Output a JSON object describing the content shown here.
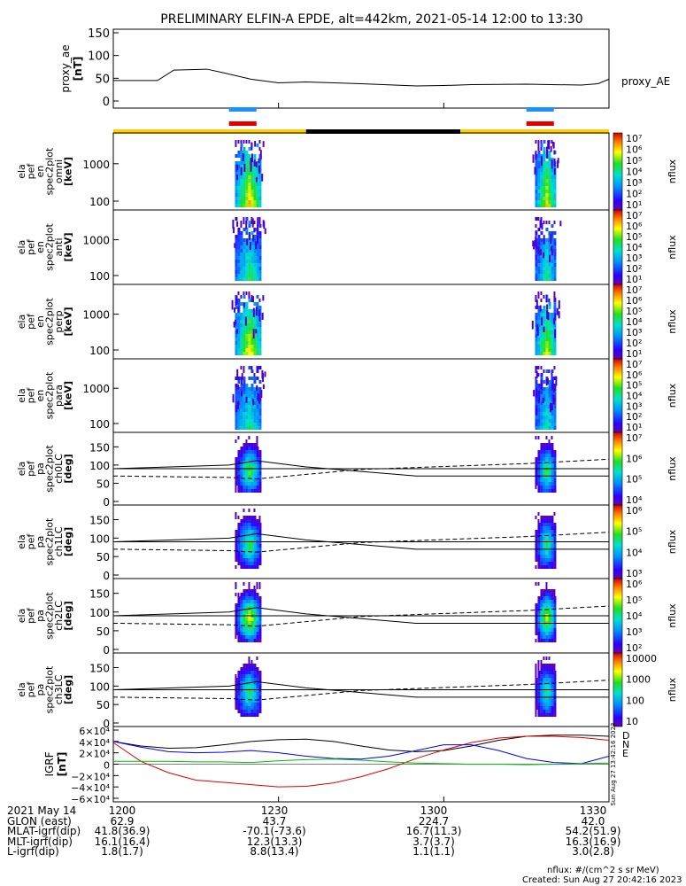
{
  "title": "PRELIMINARY ELFIN-A EPDE, alt=442km, 2021-05-14 12:00 to 13:30",
  "colors": {
    "blue_bar": "#1e90ff",
    "red_bar": "#e00000",
    "sun_bar": "#ffd000",
    "shadow_bar": "#000000",
    "bx": "#e00000",
    "by": "#0000ff",
    "bz": "#00c000"
  },
  "panels": [
    {
      "id": "proxy_ae",
      "ylabel": [
        "proxy_ae",
        "[nT]"
      ],
      "yticks": [
        "150",
        "100",
        "50",
        "0"
      ],
      "right_label": "proxy_AE"
    },
    {
      "id": "omni",
      "ylabel": [
        "ela",
        "pef",
        "en",
        "spec2plot",
        "omni",
        "[keV]"
      ],
      "yticks": [
        "1000",
        "100"
      ],
      "cbar_label": "nflux"
    },
    {
      "id": "anti",
      "ylabel": [
        "ela",
        "pef",
        "en",
        "spec2plot",
        "anti",
        "[keV]"
      ],
      "yticks": [
        "1000",
        "100"
      ],
      "cbar_label": "nflux"
    },
    {
      "id": "perp",
      "ylabel": [
        "ela",
        "pef",
        "en",
        "spec2plot",
        "perp",
        "[keV]"
      ],
      "yticks": [
        "1000",
        "100"
      ],
      "cbar_label": "nflux"
    },
    {
      "id": "para",
      "ylabel": [
        "ela",
        "pef",
        "en",
        "spec2plot",
        "para",
        "[keV]"
      ],
      "yticks": [
        "1000",
        "100"
      ],
      "cbar_label": "nflux"
    },
    {
      "id": "ch0",
      "ylabel": [
        "ela",
        "pef",
        "pa",
        "spec2plot",
        "ch0LC",
        "[deg]"
      ],
      "yticks": [
        "150",
        "100",
        "50",
        "0"
      ],
      "cbar_label": "nflux"
    },
    {
      "id": "ch1",
      "ylabel": [
        "ela",
        "pef",
        "pa",
        "spec2plot",
        "ch1LC",
        "[deg]"
      ],
      "yticks": [
        "150",
        "100",
        "50",
        "0"
      ],
      "cbar_label": "nflux"
    },
    {
      "id": "ch2",
      "ylabel": [
        "ela",
        "pef",
        "pa",
        "spec2plot",
        "ch2LC",
        "[deg]"
      ],
      "yticks": [
        "150",
        "100",
        "50",
        "0"
      ],
      "cbar_label": "nflux"
    },
    {
      "id": "ch3",
      "ylabel": [
        "ela",
        "pef",
        "pa",
        "spec2plot",
        "ch3LC",
        "[deg]"
      ],
      "yticks": [
        "150",
        "100",
        "50",
        "0"
      ],
      "cbar_label": "nflux"
    },
    {
      "id": "igrf",
      "ylabel": [
        "IGRF",
        "[nT]"
      ],
      "yticks": [
        "6×10⁴",
        "4×10⁴",
        "2×10⁴",
        "0",
        "−2×10⁴",
        "−4×10⁴",
        "−6×10⁴"
      ],
      "legend": [
        "D",
        "N",
        "E"
      ]
    }
  ],
  "colorbars": [
    {
      "ticks": [
        "10⁷",
        "10⁶",
        "10⁵",
        "10⁴",
        "10³",
        "10²",
        "10¹"
      ]
    },
    {
      "ticks": [
        "10⁷",
        "10⁶",
        "10⁵",
        "10⁴",
        "10³",
        "10²",
        "10¹"
      ]
    },
    {
      "ticks": [
        "10⁷",
        "10⁶",
        "10⁵",
        "10⁴",
        "10³",
        "10²",
        "10¹"
      ]
    },
    {
      "ticks": [
        "10⁷",
        "10⁶",
        "10⁵",
        "10⁴",
        "10³",
        "10²",
        "10¹"
      ]
    },
    {
      "ticks": [
        "10⁷",
        "10⁶",
        "10⁵",
        "10⁴"
      ]
    },
    {
      "ticks": [
        "10⁶",
        "10⁵",
        "10⁴",
        "10³"
      ]
    },
    {
      "ticks": [
        "10⁶",
        "10⁵",
        "10⁴",
        "10³",
        "10²"
      ]
    },
    {
      "ticks": [
        "10000",
        "1000",
        "100",
        "10"
      ]
    }
  ],
  "side_stamp": "Sun Aug 27 13:42:16 2023",
  "chart_data": {
    "type": "line",
    "x_time_labels": [
      "1200",
      "1230",
      "1300",
      "1330"
    ],
    "proxy_ae": {
      "t_min": [
        0,
        8,
        11,
        17,
        20,
        25,
        30,
        35,
        45,
        55,
        60,
        65,
        75,
        85,
        88,
        90
      ],
      "values": [
        45,
        45,
        68,
        70,
        62,
        48,
        40,
        42,
        38,
        33,
        34,
        36,
        37,
        35,
        38,
        48
      ],
      "ylim": [
        0,
        150
      ]
    },
    "science_zones": [
      [
        21,
        26
      ],
      [
        75,
        80
      ]
    ],
    "igrf": {
      "t_min": [
        0,
        5,
        10,
        15,
        20,
        25,
        30,
        35,
        40,
        45,
        50,
        55,
        60,
        65,
        70,
        75,
        80,
        85,
        90
      ],
      "D": [
        38000,
        5000,
        -15000,
        -28000,
        -32000,
        -36000,
        -40000,
        -39000,
        -33000,
        -22000,
        -8000,
        10000,
        25000,
        38000,
        46000,
        49000,
        49000,
        47000,
        42000
      ],
      "N": [
        40000,
        30000,
        22000,
        20000,
        21000,
        24000,
        20000,
        14000,
        10000,
        9000,
        14000,
        24000,
        34000,
        34000,
        24000,
        10000,
        3000,
        1000,
        14000
      ],
      "E": [
        5000,
        5000,
        5000,
        4000,
        4000,
        3000,
        6000,
        8000,
        9000,
        7000,
        4000,
        2000,
        1000,
        0,
        0,
        -1000,
        0,
        1000,
        2000
      ],
      "B_total": [
        40000,
        32000,
        28000,
        29000,
        34000,
        40000,
        43000,
        44000,
        40000,
        32000,
        25000,
        22000,
        24000,
        32000,
        42000,
        49000,
        51000,
        51000,
        49000
      ],
      "ylim": [
        -60000,
        60000
      ]
    }
  },
  "footer": {
    "rows": [
      [
        "2021 May 14",
        "1200",
        "1230",
        "1300",
        "1330"
      ],
      [
        "GLON (east)",
        "62.9",
        "43.7",
        "224.7",
        "42.0"
      ],
      [
        "MLAT-igrf(dip)",
        "41.8(36.9)",
        "-70.1(-73.6)",
        "16.7(11.3)",
        "54.2(51.9)"
      ],
      [
        "MLT-igrf(dip)",
        "16.1(16.4)",
        "12.3(13.3)",
        "3.7(3.7)",
        "16.3(16.9)"
      ],
      [
        "L-igrf(dip)",
        "1.8(1.7)",
        "8.8(13.4)",
        "1.1(1.1)",
        "3.0(2.8)"
      ]
    ],
    "note1": "nflux: #/(cm^2 s sr MeV)",
    "note2": "Created: Sun Aug 27 20:42:16 2023"
  }
}
